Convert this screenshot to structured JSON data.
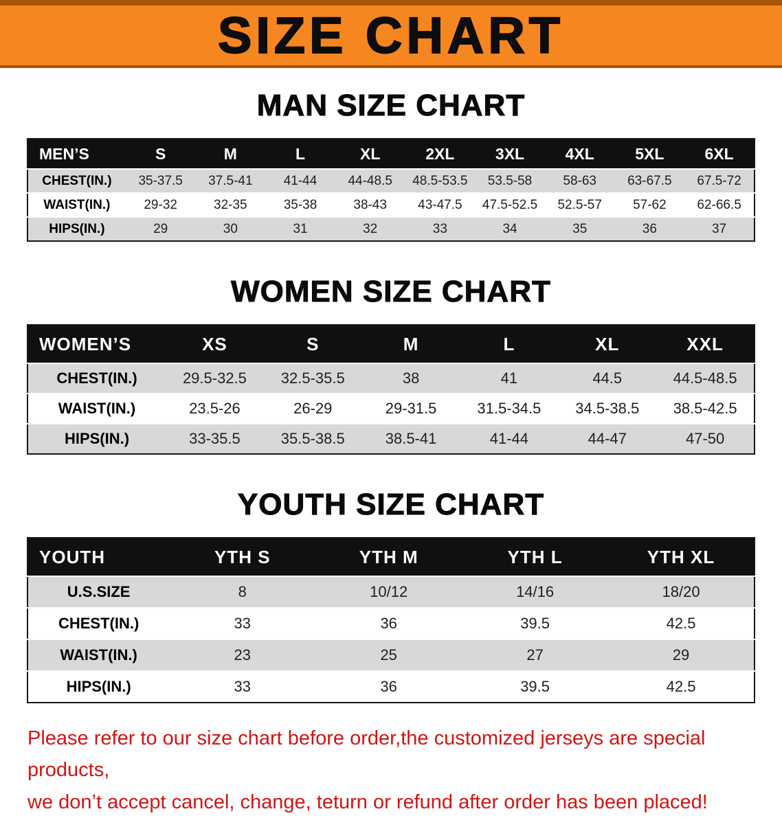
{
  "banner": {
    "title": "SIZE CHART"
  },
  "sections": [
    {
      "heading": "MAN SIZE CHART",
      "table": {
        "header": [
          "MEN’S",
          "S",
          "M",
          "L",
          "XL",
          "2XL",
          "3XL",
          "4XL",
          "5XL",
          "6XL"
        ],
        "rows": [
          [
            "CHEST(IN.)",
            "35-37.5",
            "37.5-41",
            "41-44",
            "44-48.5",
            "48.5-53.5",
            "53.5-58",
            "58-63",
            "63-67.5",
            "67.5-72"
          ],
          [
            "WAIST(IN.)",
            "29-32",
            "32-35",
            "35-38",
            "38-43",
            "43-47.5",
            "47.5-52.5",
            "52.5-57",
            "57-62",
            "62-66.5"
          ],
          [
            "HIPS(IN.)",
            "29",
            "30",
            "31",
            "32",
            "33",
            "34",
            "35",
            "36",
            "37"
          ]
        ]
      }
    },
    {
      "heading": "WOMEN SIZE CHART",
      "table": {
        "header": [
          "WOMEN’S",
          "XS",
          "S",
          "M",
          "L",
          "XL",
          "XXL"
        ],
        "rows": [
          [
            "CHEST(IN.)",
            "29.5-32.5",
            "32.5-35.5",
            "38",
            "41",
            "44.5",
            "44.5-48.5"
          ],
          [
            "WAIST(IN.)",
            "23.5-26",
            "26-29",
            "29-31.5",
            "31.5-34.5",
            "34.5-38.5",
            "38.5-42.5"
          ],
          [
            "HIPS(IN.)",
            "33-35.5",
            "35.5-38.5",
            "38.5-41",
            "41-44",
            "44-47",
            "47-50"
          ]
        ]
      }
    },
    {
      "heading": "YOUTH SIZE CHART",
      "table": {
        "header": [
          "YOUTH",
          "YTH S",
          "YTH M",
          "YTH L",
          "YTH XL"
        ],
        "rows": [
          [
            "U.S.SIZE",
            "8",
            "10/12",
            "14/16",
            "18/20"
          ],
          [
            "CHEST(IN.)",
            "33",
            "36",
            "39.5",
            "42.5"
          ],
          [
            "WAIST(IN.)",
            "23",
            "25",
            "27",
            "29"
          ],
          [
            "HIPS(IN.)",
            "33",
            "36",
            "39.5",
            "42.5"
          ]
        ]
      }
    }
  ],
  "disclaimer": {
    "line1": "Please refer to our size chart before order,the customized jerseys are special products,",
    "line2": "we don’t accept cancel, change, teturn or refund after order has been placed!"
  },
  "colors": {
    "banner_bg": "#f6861f",
    "banner_edge": "#a85405",
    "table_header_bg": "#101010",
    "row_alt_bg": "#d8d8d8",
    "disclaimer_red": "#d21414"
  }
}
